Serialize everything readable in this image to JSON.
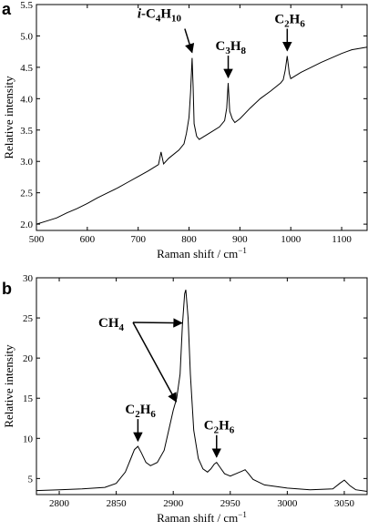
{
  "chart_data": [
    {
      "type": "line",
      "panel_label": "a",
      "xlabel": "Raman shift / cm",
      "xlabel_sup": "−1",
      "ylabel": "Relative intensity",
      "xlim": [
        500,
        1150
      ],
      "ylim": [
        1.9,
        5.5
      ],
      "xticks": [
        500,
        600,
        700,
        800,
        900,
        1000,
        1100
      ],
      "yticks": [
        2.0,
        2.5,
        3.0,
        3.5,
        4.0,
        4.5,
        5.0,
        5.5
      ],
      "ytick_labels": [
        "2.0",
        "2.5",
        "3.0",
        "3.5",
        "4.0",
        "4.5",
        "5.0",
        "5.5"
      ],
      "grid": false,
      "series": [
        {
          "x": [
            500,
            520,
            540,
            560,
            580,
            600,
            620,
            640,
            660,
            680,
            700,
            720,
            740,
            745,
            750,
            760,
            780,
            790,
            795,
            800,
            803,
            806,
            808,
            810,
            815,
            820,
            840,
            860,
            870,
            874,
            877,
            880,
            885,
            890,
            900,
            920,
            940,
            960,
            980,
            985,
            989,
            993,
            997,
            1000,
            1020,
            1040,
            1060,
            1080,
            1100,
            1120,
            1150
          ],
          "y": [
            2.0,
            2.05,
            2.1,
            2.18,
            2.25,
            2.33,
            2.42,
            2.5,
            2.58,
            2.67,
            2.76,
            2.85,
            2.95,
            3.15,
            2.96,
            3.05,
            3.18,
            3.28,
            3.45,
            3.7,
            4.1,
            4.65,
            4.2,
            3.6,
            3.4,
            3.35,
            3.45,
            3.55,
            3.65,
            3.85,
            4.25,
            3.8,
            3.68,
            3.62,
            3.68,
            3.85,
            4.0,
            4.12,
            4.25,
            4.3,
            4.45,
            4.68,
            4.4,
            4.32,
            4.42,
            4.5,
            4.58,
            4.65,
            4.72,
            4.78,
            4.82
          ]
        }
      ],
      "annotations": [
        {
          "prefix": "i",
          "text": "-C",
          "sub1": "4",
          "mid": "H",
          "sub2": "10",
          "x": 806,
          "y": 4.65
        },
        {
          "prefix": "",
          "text": "C",
          "sub1": "3",
          "mid": "H",
          "sub2": "8",
          "x": 877,
          "y": 4.25
        },
        {
          "prefix": "",
          "text": "C",
          "sub1": "2",
          "mid": "H",
          "sub2": "6",
          "x": 993,
          "y": 4.68
        }
      ]
    },
    {
      "type": "line",
      "panel_label": "b",
      "xlabel": "Raman shift / cm",
      "xlabel_sup": "−1",
      "ylabel": "Relative intensity",
      "xlim": [
        2780,
        3070
      ],
      "ylim": [
        3,
        30
      ],
      "xticks": [
        2800,
        2850,
        2900,
        2950,
        3000,
        3050
      ],
      "yticks": [
        5,
        10,
        15,
        20,
        25,
        30
      ],
      "ytick_labels": [
        "5",
        "10",
        "15",
        "20",
        "25",
        "30"
      ],
      "grid": false,
      "series": [
        {
          "x": [
            2780,
            2800,
            2820,
            2840,
            2850,
            2858,
            2862,
            2866,
            2869,
            2872,
            2876,
            2880,
            2886,
            2892,
            2896,
            2900,
            2903,
            2906,
            2908,
            2910,
            2911,
            2913,
            2915,
            2918,
            2922,
            2926,
            2930,
            2933,
            2936,
            2938,
            2941,
            2945,
            2950,
            2955,
            2960,
            2963,
            2966,
            2970,
            2980,
            3000,
            3020,
            3040,
            3046,
            3050,
            3055,
            3060,
            3070
          ],
          "y": [
            3.5,
            3.6,
            3.7,
            3.9,
            4.4,
            5.8,
            7.2,
            8.6,
            9.0,
            8.2,
            7.0,
            6.6,
            7.0,
            8.5,
            11.0,
            13.5,
            15.0,
            18.0,
            24.0,
            28.0,
            28.5,
            25.0,
            18.0,
            11.0,
            7.5,
            6.2,
            5.8,
            6.2,
            6.8,
            7.0,
            6.4,
            5.6,
            5.3,
            5.6,
            5.9,
            6.1,
            5.6,
            4.9,
            4.2,
            3.8,
            3.6,
            3.7,
            4.4,
            4.8,
            4.1,
            3.6,
            3.4
          ]
        }
      ],
      "annotations": [
        {
          "prefix": "",
          "text": "CH",
          "sub1": "4",
          "mid": "",
          "sub2": "",
          "targets": [
            {
              "x": 2905,
              "y": 14.8
            },
            {
              "x": 2910,
              "y": 24.6
            }
          ]
        },
        {
          "prefix": "",
          "text": "C",
          "sub1": "2",
          "mid": "H",
          "sub2": "6",
          "x": 2869,
          "y": 9.0
        },
        {
          "prefix": "",
          "text": "C",
          "sub1": "2",
          "mid": "H",
          "sub2": "6",
          "x": 2938,
          "y": 7.0
        }
      ]
    }
  ]
}
